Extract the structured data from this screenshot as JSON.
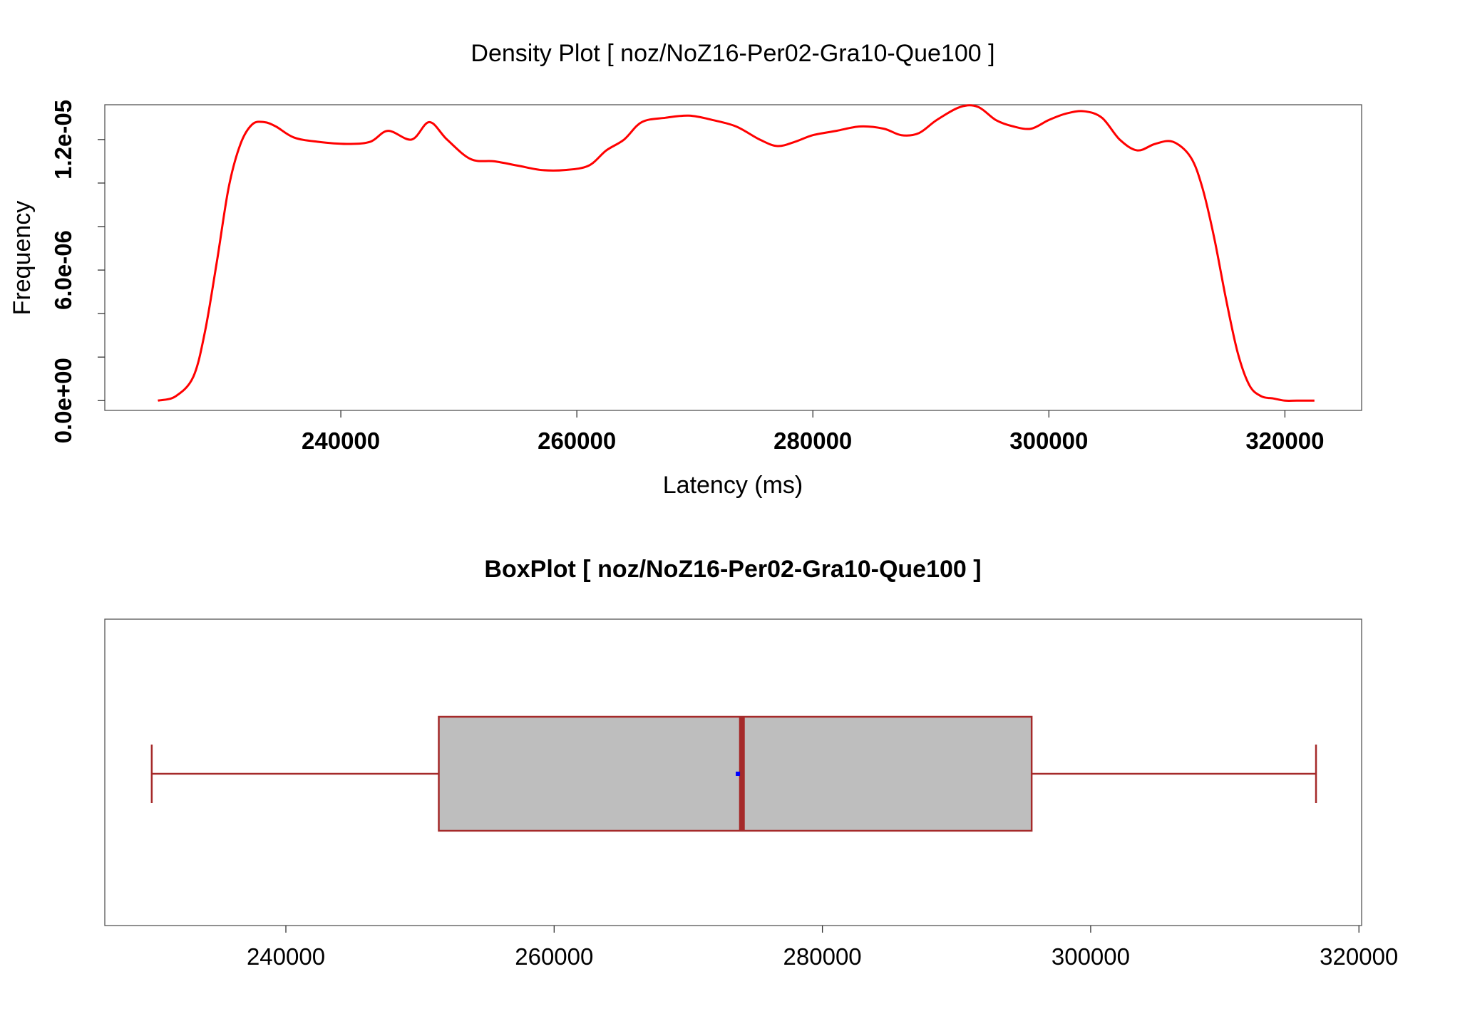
{
  "chart_data": [
    {
      "type": "line",
      "title": "Density Plot [ noz/NoZ16-Per02-Gra10-Que100 ]",
      "xlabel": "Latency (ms)",
      "ylabel": "Frequency",
      "x_ticks": [
        "240000",
        "260000",
        "280000",
        "300000",
        "320000"
      ],
      "x_tick_values": [
        240000,
        260000,
        280000,
        300000,
        320000
      ],
      "y_ticks": [
        "0.0e+00",
        "6.0e-06",
        "1.2e-05"
      ],
      "y_tick_values": [
        0,
        6e-06,
        1.2e-05
      ],
      "y_minor_tick_values": [
        0,
        2e-06,
        4e-06,
        6e-06,
        8e-06,
        1e-05,
        1.2e-05
      ],
      "xlim": [
        220000,
        326500
      ],
      "ylim": [
        -4.5e-07,
        1.36e-05
      ],
      "grid": false,
      "line_color": "#ff0000",
      "series": [
        {
          "x": [
            224500,
            226000,
            227500,
            228500,
            229500,
            230500,
            231500,
            232500,
            233500,
            234500,
            236000,
            238000,
            240500,
            242500,
            244000,
            246000,
            247500,
            249000,
            251000,
            253000,
            255000,
            257000,
            259000,
            261000,
            262500,
            264000,
            265500,
            267500,
            269500,
            271500,
            273500,
            275500,
            277000,
            278500,
            280000,
            282000,
            284000,
            286000,
            287500,
            289000,
            290500,
            292500,
            294000,
            295500,
            297000,
            298500,
            300000,
            301500,
            303000,
            304500,
            306000,
            307500,
            309000,
            310500,
            312000,
            313000,
            314000,
            315000,
            316000,
            317000,
            318000,
            319000,
            320000,
            321000,
            322500
          ],
          "y": [
            0.0,
            2e-07,
            1.1e-06,
            3.2e-06,
            6.4e-06,
            9.8e-06,
            1.18e-05,
            1.27e-05,
            1.28e-05,
            1.26e-05,
            1.21e-05,
            1.19e-05,
            1.18e-05,
            1.19e-05,
            1.24e-05,
            1.2e-05,
            1.28e-05,
            1.2e-05,
            1.11e-05,
            1.1e-05,
            1.08e-05,
            1.06e-05,
            1.06e-05,
            1.08e-05,
            1.15e-05,
            1.2e-05,
            1.28e-05,
            1.3e-05,
            1.31e-05,
            1.29e-05,
            1.26e-05,
            1.2e-05,
            1.17e-05,
            1.19e-05,
            1.22e-05,
            1.24e-05,
            1.26e-05,
            1.25e-05,
            1.22e-05,
            1.23e-05,
            1.29e-05,
            1.35e-05,
            1.35e-05,
            1.29e-05,
            1.26e-05,
            1.25e-05,
            1.29e-05,
            1.32e-05,
            1.33e-05,
            1.3e-05,
            1.2e-05,
            1.15e-05,
            1.18e-05,
            1.19e-05,
            1.12e-05,
            9.8e-06,
            7.5e-06,
            4.7e-06,
            2.2e-06,
            7e-07,
            2e-07,
            1e-07,
            0.0,
            0.0,
            0.0
          ]
        }
      ]
    },
    {
      "type": "boxplot",
      "title": "BoxPlot [ noz/NoZ16-Per02-Gra10-Que100 ]",
      "x_ticks": [
        "240000",
        "260000",
        "280000",
        "300000",
        "320000"
      ],
      "x_tick_values": [
        240000,
        260000,
        280000,
        300000,
        320000
      ],
      "xlim": [
        226500,
        320200
      ],
      "grid": false,
      "box": {
        "whisker_low": 230000,
        "q1": 251400,
        "median": 274000,
        "mean": 273700,
        "q3": 295600,
        "whisker_high": 316800
      },
      "box_fill": "#bebebe",
      "box_border": "#a52a2a",
      "mean_color": "#0000ff"
    }
  ]
}
